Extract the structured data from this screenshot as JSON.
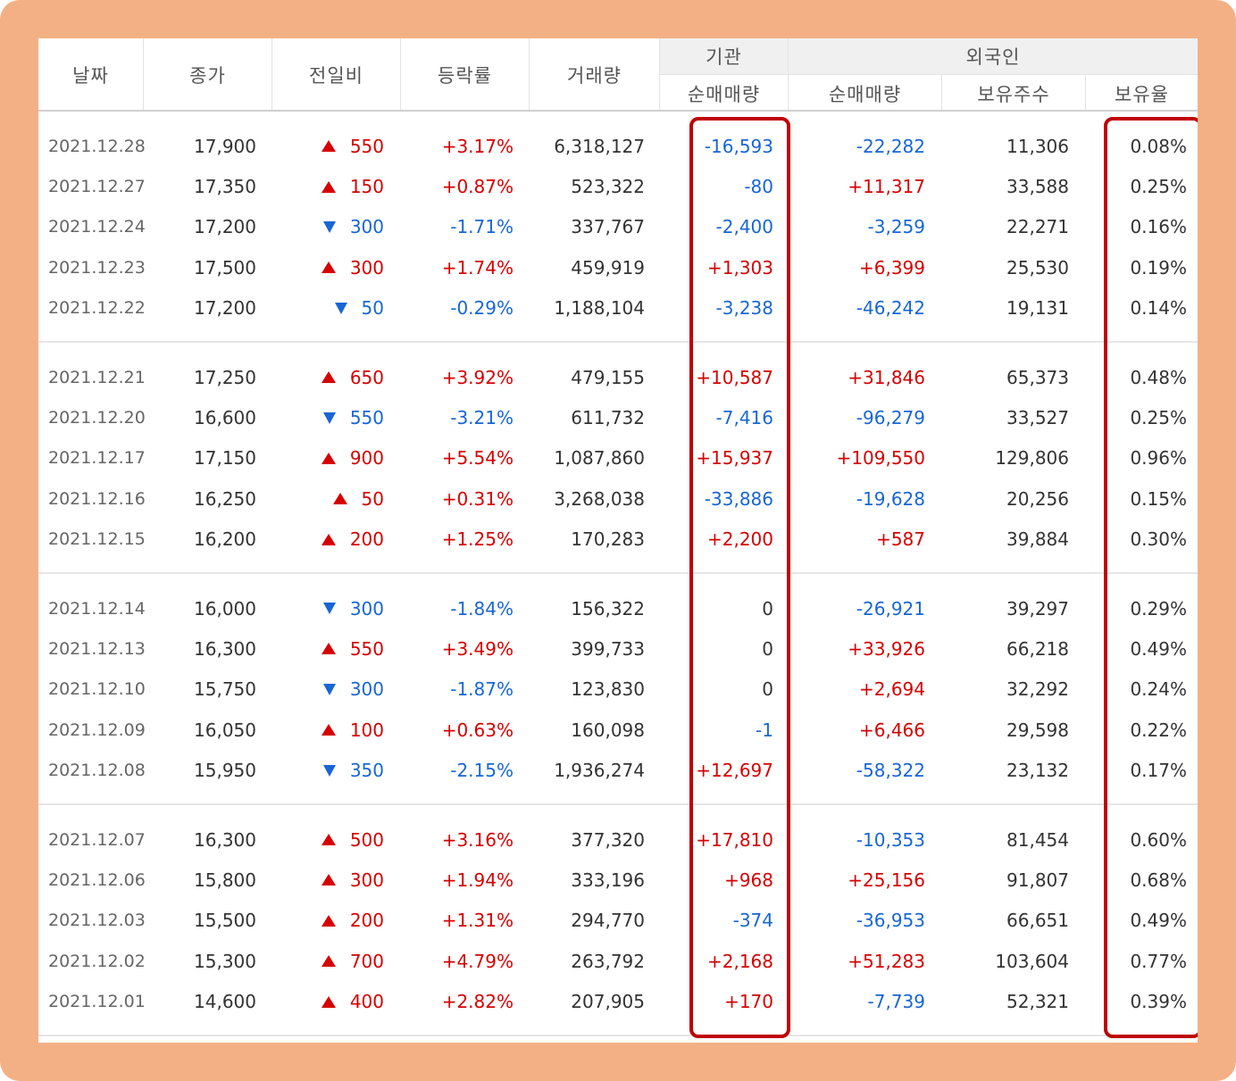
{
  "headers": {
    "date": "날짜",
    "close": "종가",
    "diff": "전일비",
    "rate": "등락률",
    "volume": "거래량",
    "institution_group": "기관",
    "institution_net": "순매매량",
    "foreign_group": "외국인",
    "foreign_net": "순매매량",
    "foreign_holdings": "보유주수",
    "foreign_ratio": "보유율"
  },
  "colors": {
    "frame": "#f4b085",
    "up": "#d60000",
    "down": "#1766d6",
    "highlight": "#c00000"
  },
  "groups": [
    [
      {
        "date": "2021.12.28",
        "close": "17,900",
        "dir": "up",
        "diff": "550",
        "rate": "+3.17%",
        "volume": "6,318,127",
        "inst": "-16,593",
        "forn": "-22,282",
        "hold": "11,306",
        "ratio": "0.08%"
      },
      {
        "date": "2021.12.27",
        "close": "17,350",
        "dir": "up",
        "diff": "150",
        "rate": "+0.87%",
        "volume": "523,322",
        "inst": "-80",
        "forn": "+11,317",
        "hold": "33,588",
        "ratio": "0.25%"
      },
      {
        "date": "2021.12.24",
        "close": "17,200",
        "dir": "down",
        "diff": "300",
        "rate": "-1.71%",
        "volume": "337,767",
        "inst": "-2,400",
        "forn": "-3,259",
        "hold": "22,271",
        "ratio": "0.16%"
      },
      {
        "date": "2021.12.23",
        "close": "17,500",
        "dir": "up",
        "diff": "300",
        "rate": "+1.74%",
        "volume": "459,919",
        "inst": "+1,303",
        "forn": "+6,399",
        "hold": "25,530",
        "ratio": "0.19%"
      },
      {
        "date": "2021.12.22",
        "close": "17,200",
        "dir": "down",
        "diff": "50",
        "rate": "-0.29%",
        "volume": "1,188,104",
        "inst": "-3,238",
        "forn": "-46,242",
        "hold": "19,131",
        "ratio": "0.14%"
      }
    ],
    [
      {
        "date": "2021.12.21",
        "close": "17,250",
        "dir": "up",
        "diff": "650",
        "rate": "+3.92%",
        "volume": "479,155",
        "inst": "+10,587",
        "forn": "+31,846",
        "hold": "65,373",
        "ratio": "0.48%"
      },
      {
        "date": "2021.12.20",
        "close": "16,600",
        "dir": "down",
        "diff": "550",
        "rate": "-3.21%",
        "volume": "611,732",
        "inst": "-7,416",
        "forn": "-96,279",
        "hold": "33,527",
        "ratio": "0.25%"
      },
      {
        "date": "2021.12.17",
        "close": "17,150",
        "dir": "up",
        "diff": "900",
        "rate": "+5.54%",
        "volume": "1,087,860",
        "inst": "+15,937",
        "forn": "+109,550",
        "hold": "129,806",
        "ratio": "0.96%"
      },
      {
        "date": "2021.12.16",
        "close": "16,250",
        "dir": "up",
        "diff": "50",
        "rate": "+0.31%",
        "volume": "3,268,038",
        "inst": "-33,886",
        "forn": "-19,628",
        "hold": "20,256",
        "ratio": "0.15%"
      },
      {
        "date": "2021.12.15",
        "close": "16,200",
        "dir": "up",
        "diff": "200",
        "rate": "+1.25%",
        "volume": "170,283",
        "inst": "+2,200",
        "forn": "+587",
        "hold": "39,884",
        "ratio": "0.30%"
      }
    ],
    [
      {
        "date": "2021.12.14",
        "close": "16,000",
        "dir": "down",
        "diff": "300",
        "rate": "-1.84%",
        "volume": "156,322",
        "inst": "0",
        "forn": "-26,921",
        "hold": "39,297",
        "ratio": "0.29%"
      },
      {
        "date": "2021.12.13",
        "close": "16,300",
        "dir": "up",
        "diff": "550",
        "rate": "+3.49%",
        "volume": "399,733",
        "inst": "0",
        "forn": "+33,926",
        "hold": "66,218",
        "ratio": "0.49%"
      },
      {
        "date": "2021.12.10",
        "close": "15,750",
        "dir": "down",
        "diff": "300",
        "rate": "-1.87%",
        "volume": "123,830",
        "inst": "0",
        "forn": "+2,694",
        "hold": "32,292",
        "ratio": "0.24%"
      },
      {
        "date": "2021.12.09",
        "close": "16,050",
        "dir": "up",
        "diff": "100",
        "rate": "+0.63%",
        "volume": "160,098",
        "inst": "-1",
        "forn": "+6,466",
        "hold": "29,598",
        "ratio": "0.22%"
      },
      {
        "date": "2021.12.08",
        "close": "15,950",
        "dir": "down",
        "diff": "350",
        "rate": "-2.15%",
        "volume": "1,936,274",
        "inst": "+12,697",
        "forn": "-58,322",
        "hold": "23,132",
        "ratio": "0.17%"
      }
    ],
    [
      {
        "date": "2021.12.07",
        "close": "16,300",
        "dir": "up",
        "diff": "500",
        "rate": "+3.16%",
        "volume": "377,320",
        "inst": "+17,810",
        "forn": "-10,353",
        "hold": "81,454",
        "ratio": "0.60%"
      },
      {
        "date": "2021.12.06",
        "close": "15,800",
        "dir": "up",
        "diff": "300",
        "rate": "+1.94%",
        "volume": "333,196",
        "inst": "+968",
        "forn": "+25,156",
        "hold": "91,807",
        "ratio": "0.68%"
      },
      {
        "date": "2021.12.03",
        "close": "15,500",
        "dir": "up",
        "diff": "200",
        "rate": "+1.31%",
        "volume": "294,770",
        "inst": "-374",
        "forn": "-36,953",
        "hold": "66,651",
        "ratio": "0.49%"
      },
      {
        "date": "2021.12.02",
        "close": "15,300",
        "dir": "up",
        "diff": "700",
        "rate": "+4.79%",
        "volume": "263,792",
        "inst": "+2,168",
        "forn": "+51,283",
        "hold": "103,604",
        "ratio": "0.77%"
      },
      {
        "date": "2021.12.01",
        "close": "14,600",
        "dir": "up",
        "diff": "400",
        "rate": "+2.82%",
        "volume": "207,905",
        "inst": "+170",
        "forn": "-7,739",
        "hold": "52,321",
        "ratio": "0.39%"
      }
    ]
  ]
}
